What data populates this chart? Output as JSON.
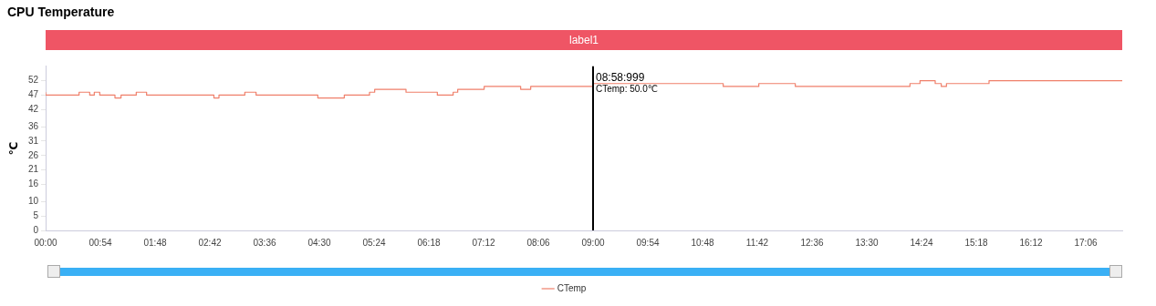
{
  "chart_data": {
    "type": "step",
    "title": "CPU Temperature",
    "ylabel": "℃",
    "x": [
      0,
      33,
      43.5,
      48,
      53.4,
      68.4,
      74.4,
      89.4,
      99.6,
      166,
      171,
      196.5,
      207.6,
      268.5,
      294.6,
      319.5,
      324.6,
      355.5,
      386.4,
      402,
      406.5,
      432.6,
      468.6,
      478.5,
      514.5,
      540,
      668.4,
      703.5,
      739.5,
      852.6,
      862.5,
      877.5,
      883.5,
      888.6,
      930.6,
      939.6,
      1062
    ],
    "series": [
      {
        "name": "CTemp",
        "color": "#ef7f6a",
        "values": [
          48,
          47,
          48,
          47,
          48,
          47,
          46,
          47,
          48,
          47,
          46,
          47,
          48,
          47,
          46,
          47,
          48,
          49,
          48,
          47,
          48,
          49,
          50,
          49,
          50,
          50,
          51,
          50,
          51,
          50,
          51,
          52,
          51,
          50,
          51,
          52,
          52
        ]
      }
    ],
    "xlim": [
      0,
      1062
    ],
    "xticks": [
      {
        "value": 0,
        "label": "00:00"
      },
      {
        "value": 54,
        "label": "00:54"
      },
      {
        "value": 108,
        "label": "01:48"
      },
      {
        "value": 162,
        "label": "02:42"
      },
      {
        "value": 216,
        "label": "03:36"
      },
      {
        "value": 270,
        "label": "04:30"
      },
      {
        "value": 324,
        "label": "05:24"
      },
      {
        "value": 378,
        "label": "06:18"
      },
      {
        "value": 432,
        "label": "07:12"
      },
      {
        "value": 486,
        "label": "08:06"
      },
      {
        "value": 540,
        "label": "09:00"
      },
      {
        "value": 594,
        "label": "09:54"
      },
      {
        "value": 648,
        "label": "10:48"
      },
      {
        "value": 702,
        "label": "11:42"
      },
      {
        "value": 756,
        "label": "12:36"
      },
      {
        "value": 810,
        "label": "13:30"
      },
      {
        "value": 864,
        "label": "14:24"
      },
      {
        "value": 918,
        "label": "15:18"
      },
      {
        "value": 972,
        "label": "16:12"
      },
      {
        "value": 1026,
        "label": "17:06"
      }
    ],
    "ylim": [
      0,
      57
    ],
    "yticks": [
      0,
      5,
      10,
      16,
      21,
      26,
      31,
      36,
      42,
      47,
      52
    ],
    "ref_lines": [
      {
        "axis": "x",
        "value": 540,
        "color": "#000000"
      }
    ],
    "annotations": [
      "label1",
      {
        "text": "08:58:999",
        "x": 540,
        "y": 54
      },
      {
        "text": "CTemp: 50.0℃",
        "x": 540,
        "y": 50
      }
    ],
    "legend": "bottom",
    "grid": false,
    "marker": "none",
    "line_style": "solid"
  }
}
